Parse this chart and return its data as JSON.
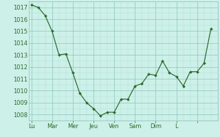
{
  "x_values": [
    0,
    0.5,
    1,
    1.5,
    2,
    2.5,
    3,
    3.5,
    4,
    4.5,
    5,
    5.5,
    6,
    6.5,
    7,
    7.5,
    8,
    8.5,
    9,
    9.5,
    10,
    10.5,
    11,
    11.5,
    12,
    12.5,
    13
  ],
  "y_values": [
    1017.2,
    1017.0,
    1016.3,
    1015.0,
    1013.0,
    1013.1,
    1011.5,
    1009.8,
    1009.0,
    1008.5,
    1007.9,
    1008.2,
    1008.2,
    1009.3,
    1009.3,
    1010.4,
    1010.6,
    1011.4,
    1011.3,
    1012.5,
    1011.5,
    1011.2,
    1010.4,
    1011.6,
    1011.6,
    1012.3,
    1015.2
  ],
  "line_color": "#2d6a2d",
  "marker_color": "#2d6a2d",
  "bg_color": "#cdf0e8",
  "grid_color_major": "#88c4bc",
  "grid_color_minor": "#aaddd6",
  "xlim": [
    -0.2,
    13.5
  ],
  "ylim": [
    1007.5,
    1017.5
  ],
  "yticks": [
    1008,
    1009,
    1010,
    1011,
    1012,
    1013,
    1014,
    1015,
    1016,
    1017
  ],
  "xtick_positions": [
    0,
    1.5,
    3.0,
    4.5,
    6.0,
    7.5,
    9.0,
    10.5,
    12.0
  ],
  "xtick_labels": [
    "Lu",
    "Mar",
    "Mer",
    "Jeu",
    "Ven",
    "Sam",
    "Dim",
    "L",
    ""
  ],
  "tick_fontsize": 6,
  "ylabel_fontsize": 6
}
